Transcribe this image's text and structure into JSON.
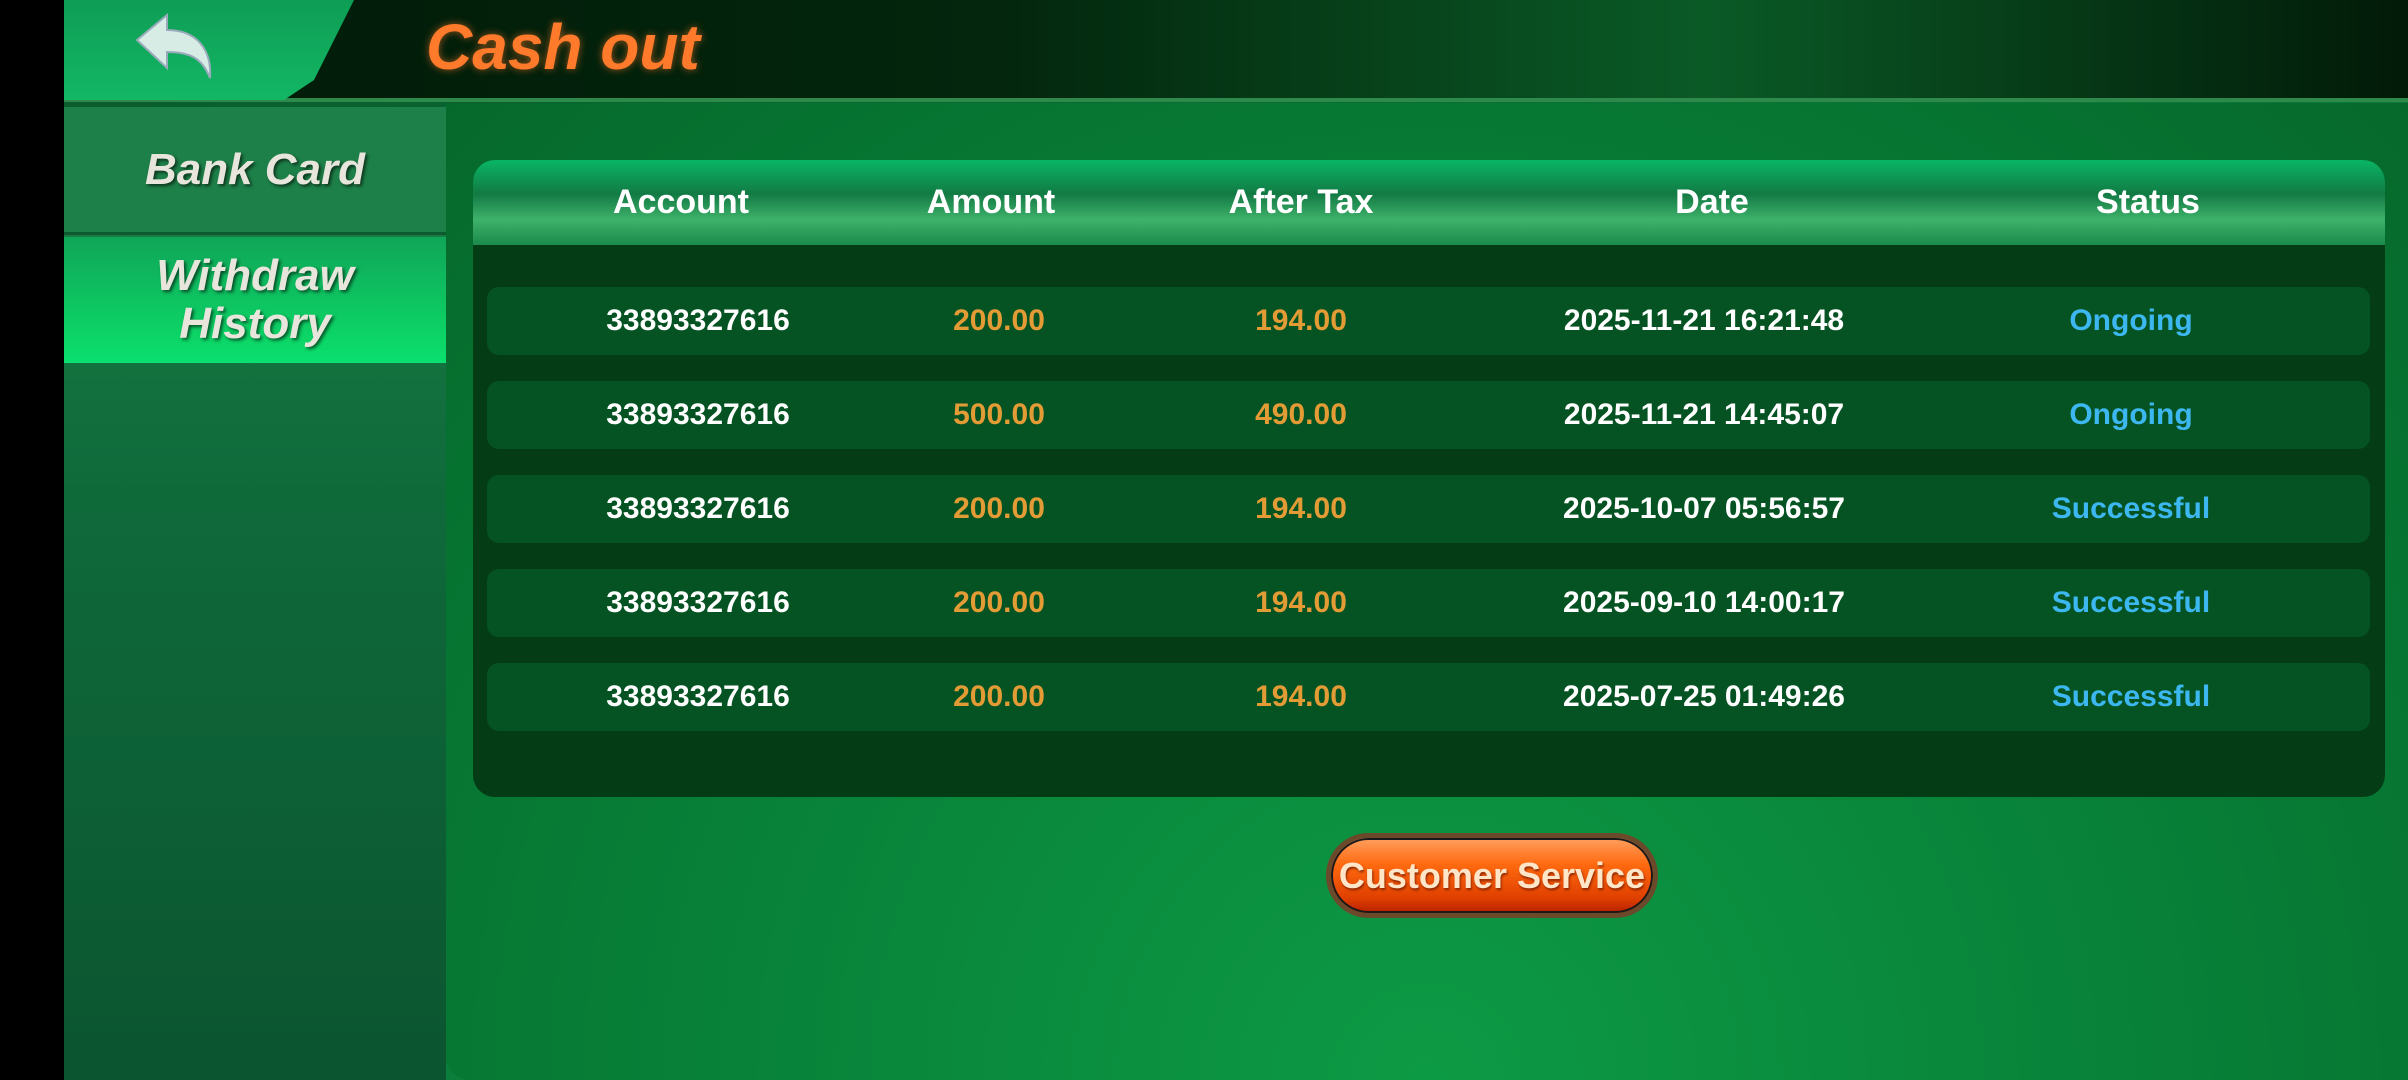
{
  "header": {
    "title": "Cash out",
    "back_icon": "back-arrow-icon"
  },
  "sidebar": {
    "items": [
      {
        "label": "Bank Card",
        "active": false
      },
      {
        "label": "Withdraw History",
        "active": true
      }
    ]
  },
  "table": {
    "columns": [
      "Account",
      "Amount",
      "After Tax",
      "Date",
      "Status"
    ],
    "rows": [
      {
        "account": "33893327616",
        "amount": "200.00",
        "after_tax": "194.00",
        "date": "2025-11-21 16:21:48",
        "status": "Ongoing"
      },
      {
        "account": "33893327616",
        "amount": "500.00",
        "after_tax": "490.00",
        "date": "2025-11-21 14:45:07",
        "status": "Ongoing"
      },
      {
        "account": "33893327616",
        "amount": "200.00",
        "after_tax": "194.00",
        "date": "2025-10-07 05:56:57",
        "status": "Successful"
      },
      {
        "account": "33893327616",
        "amount": "200.00",
        "after_tax": "194.00",
        "date": "2025-09-10 14:00:17",
        "status": "Successful"
      },
      {
        "account": "33893327616",
        "amount": "200.00",
        "after_tax": "194.00",
        "date": "2025-07-25 01:49:26",
        "status": "Successful"
      }
    ]
  },
  "customer_service_label": "Customer Service",
  "colors": {
    "amount": "#e29b35",
    "status": "#3cb7f0",
    "title": "#ff7a2a"
  }
}
